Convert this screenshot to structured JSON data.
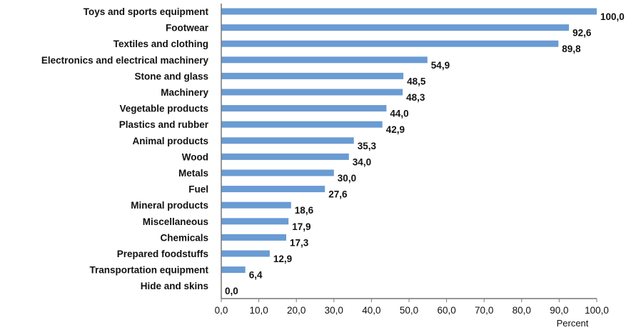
{
  "chart_data": {
    "type": "bar",
    "orientation": "horizontal",
    "categories": [
      "Toys and sports equipment",
      "Footwear",
      "Textiles and clothing",
      "Electronics and electrical machinery",
      "Stone and glass",
      "Machinery",
      "Vegetable products",
      "Plastics and rubber",
      "Animal products",
      "Wood",
      "Metals",
      "Fuel",
      "Mineral products",
      "Miscellaneous",
      "Chemicals",
      "Prepared foodstuffs",
      "Transportation equipment",
      "Hide and skins"
    ],
    "values": [
      100.0,
      92.6,
      89.8,
      54.9,
      48.5,
      48.3,
      44.0,
      42.9,
      35.3,
      34.0,
      30.0,
      27.6,
      18.6,
      17.9,
      17.3,
      12.9,
      6.4,
      0.0
    ],
    "value_labels": [
      "100,0",
      "92,6",
      "89,8",
      "54,9",
      "48,5",
      "48,3",
      "44,0",
      "42,9",
      "35,3",
      "34,0",
      "30,0",
      "27,6",
      "18,6",
      "17,9",
      "17,3",
      "12,9",
      "6,4",
      "0,0"
    ],
    "x_ticks": [
      "0,0",
      "10,0",
      "20,0",
      "30,0",
      "40,0",
      "50,0",
      "60,0",
      "70,0",
      "80,0",
      "90,0",
      "100,0"
    ],
    "xlabel": "Percent",
    "ylabel": "",
    "title": "",
    "xlim": [
      0,
      100
    ],
    "grid": false,
    "bar_color": "#6a9bd3"
  }
}
